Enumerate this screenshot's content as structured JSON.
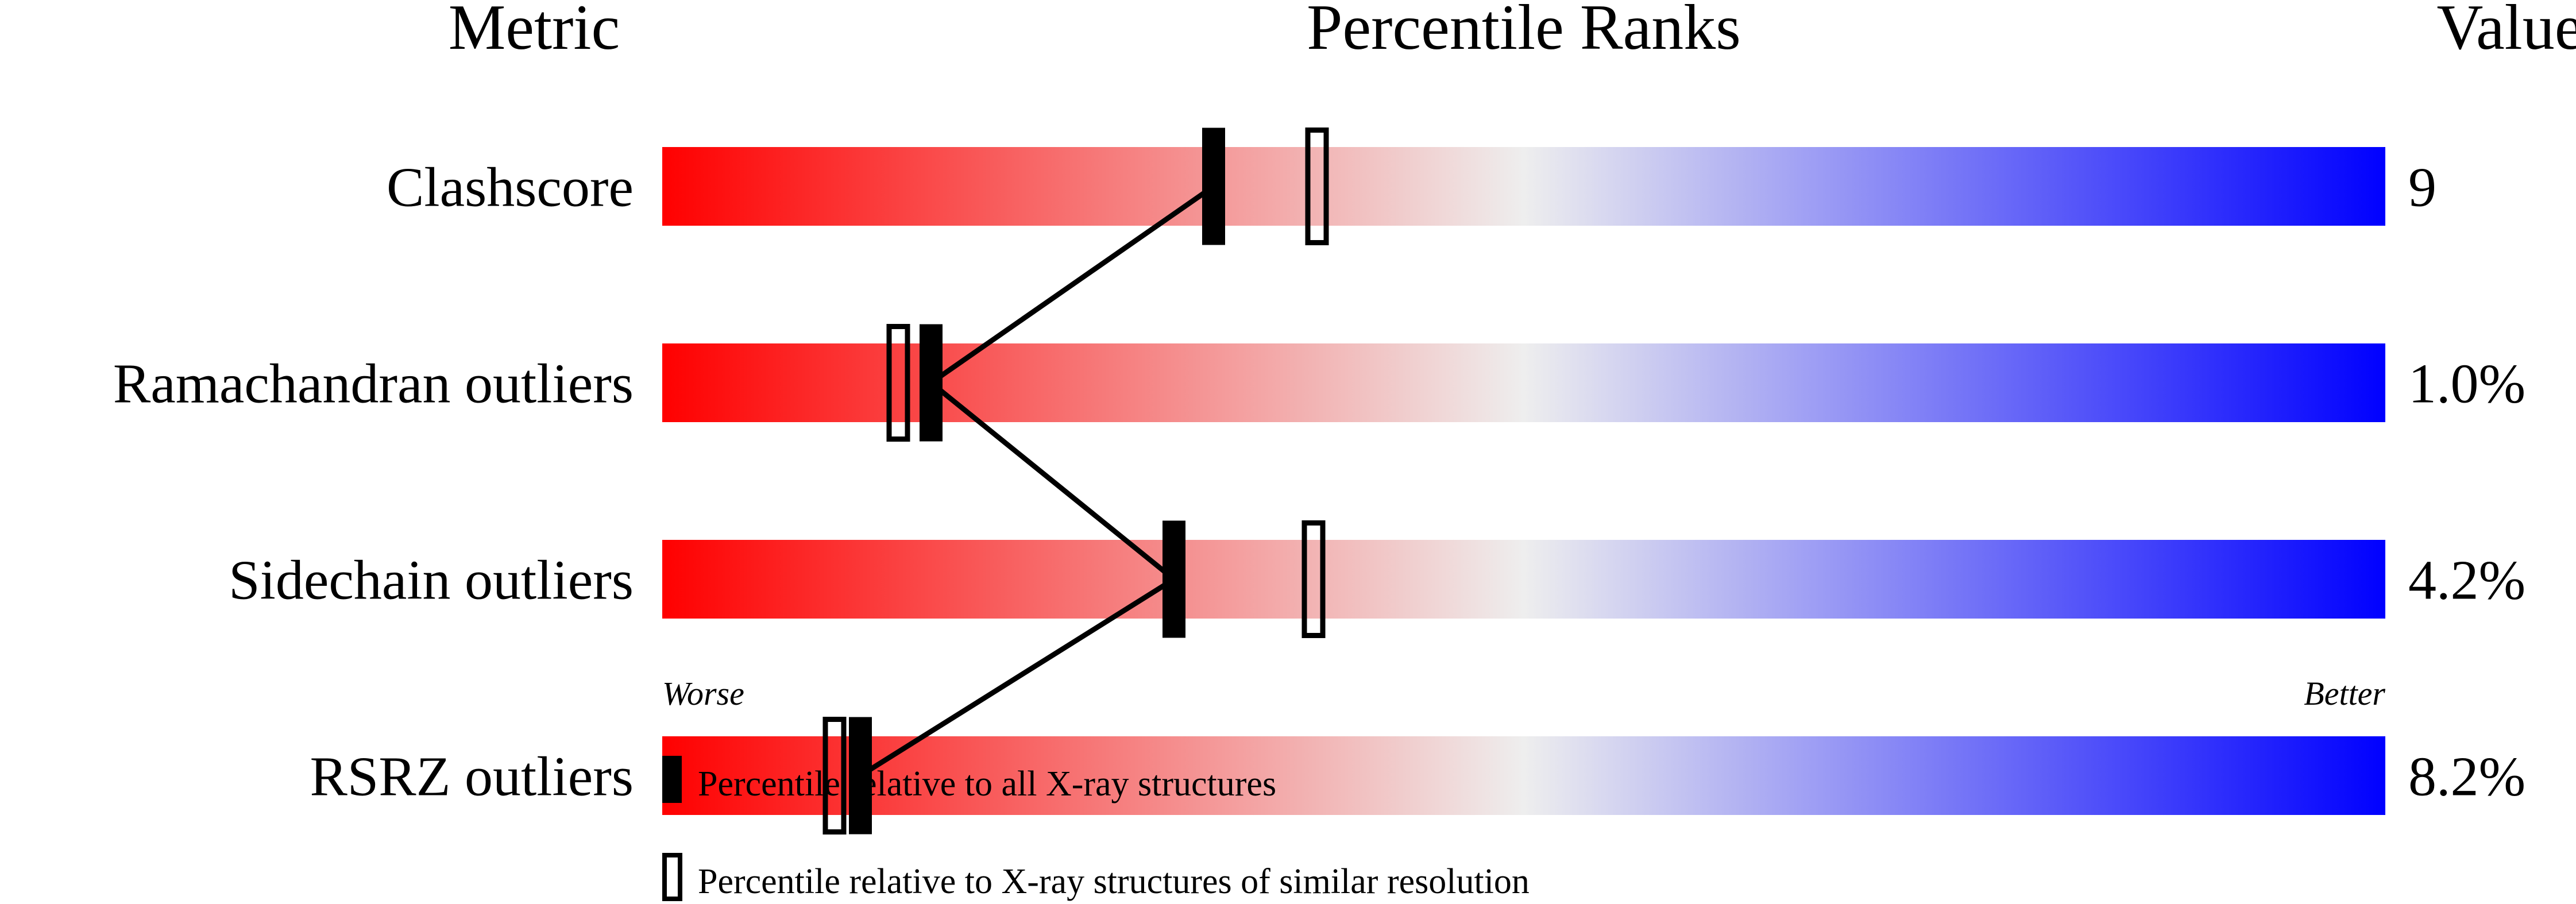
{
  "chart_data": {
    "type": "bar",
    "headers": {
      "metric": "Metric",
      "ranks": "Percentile Ranks",
      "value": "Value"
    },
    "xlim": [
      0,
      100
    ],
    "axis_labels": {
      "left": "Worse",
      "right": "Better"
    },
    "gradient_colors": [
      "#ff0000",
      "#eeeeee",
      "#0000ff"
    ],
    "rows": [
      {
        "metric": "Clashscore",
        "value": "9",
        "percentile_all": 32,
        "percentile_similar": 38
      },
      {
        "metric": "Ramachandran outliers",
        "value": "1.0%",
        "percentile_all": 15.6,
        "percentile_similar": 13.7
      },
      {
        "metric": "Sidechain outliers",
        "value": "4.2%",
        "percentile_all": 29.7,
        "percentile_similar": 37.8
      },
      {
        "metric": "RSRZ outliers",
        "value": "8.2%",
        "percentile_all": 11.5,
        "percentile_similar": 10
      }
    ],
    "legend": [
      {
        "marker": "filled",
        "label": "Percentile relative to all X-ray structures"
      },
      {
        "marker": "open",
        "label": "Percentile relative to X-ray structures of similar resolution"
      }
    ]
  }
}
